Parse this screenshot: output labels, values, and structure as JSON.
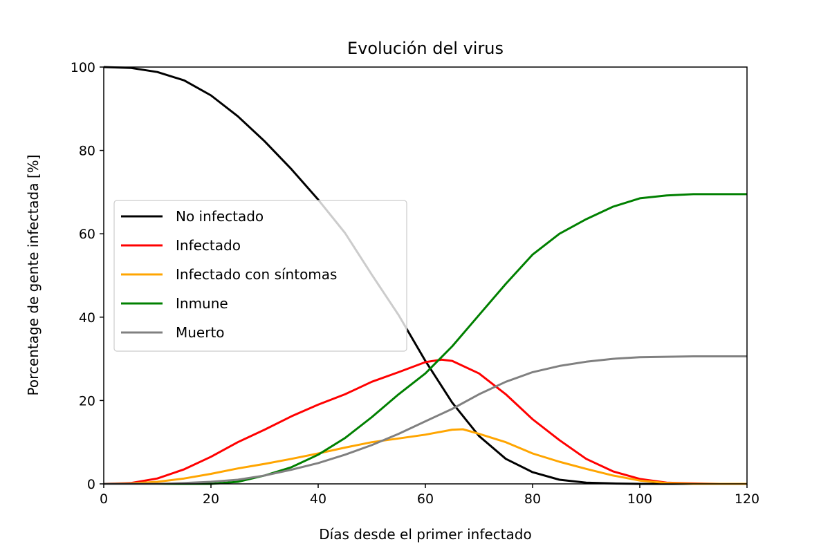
{
  "chart_data": {
    "type": "line",
    "title": "Evolución del virus",
    "xlabel": "Días desde el primer infectado",
    "ylabel": "Porcentage de gente infectada [%]",
    "xlim": [
      0,
      120
    ],
    "ylim": [
      0,
      100
    ],
    "xticks": [
      0,
      20,
      40,
      60,
      80,
      100,
      120
    ],
    "yticks": [
      0,
      20,
      40,
      60,
      80,
      100
    ],
    "grid": false,
    "legend_position": "center-left",
    "series": [
      {
        "name": "No infectado",
        "color": "#000000",
        "points": [
          [
            0,
            100
          ],
          [
            5,
            99.8
          ],
          [
            10,
            98.8
          ],
          [
            15,
            96.8
          ],
          [
            20,
            93.2
          ],
          [
            25,
            88.2
          ],
          [
            30,
            82.2
          ],
          [
            35,
            75.5
          ],
          [
            40,
            68.2
          ],
          [
            45,
            60.2
          ],
          [
            50,
            50.2
          ],
          [
            55,
            40.5
          ],
          [
            60,
            29.5
          ],
          [
            65,
            19.5
          ],
          [
            70,
            11.5
          ],
          [
            75,
            6
          ],
          [
            80,
            2.8
          ],
          [
            85,
            1
          ],
          [
            90,
            0.3
          ],
          [
            95,
            0.1
          ],
          [
            100,
            0
          ],
          [
            105,
            0
          ],
          [
            110,
            0
          ],
          [
            115,
            0
          ],
          [
            120,
            0
          ]
        ]
      },
      {
        "name": "Infectado",
        "color": "#ff0000",
        "points": [
          [
            0,
            0
          ],
          [
            5,
            0.2
          ],
          [
            10,
            1.3
          ],
          [
            15,
            3.5
          ],
          [
            20,
            6.5
          ],
          [
            25,
            10
          ],
          [
            30,
            13
          ],
          [
            35,
            16.2
          ],
          [
            40,
            19
          ],
          [
            45,
            21.5
          ],
          [
            50,
            24.5
          ],
          [
            55,
            26.8
          ],
          [
            60,
            29.2
          ],
          [
            63,
            29.8
          ],
          [
            65,
            29.5
          ],
          [
            70,
            26.5
          ],
          [
            75,
            21.5
          ],
          [
            80,
            15.5
          ],
          [
            85,
            10.5
          ],
          [
            90,
            6
          ],
          [
            95,
            3
          ],
          [
            100,
            1.2
          ],
          [
            105,
            0.3
          ],
          [
            110,
            0.1
          ],
          [
            115,
            0
          ],
          [
            120,
            0
          ]
        ]
      },
      {
        "name": "Infectado con síntomas",
        "color": "#ffa500",
        "points": [
          [
            0,
            0
          ],
          [
            5,
            0.1
          ],
          [
            10,
            0.5
          ],
          [
            15,
            1.3
          ],
          [
            20,
            2.4
          ],
          [
            25,
            3.7
          ],
          [
            30,
            4.8
          ],
          [
            35,
            6
          ],
          [
            40,
            7.3
          ],
          [
            45,
            8.7
          ],
          [
            50,
            10
          ],
          [
            55,
            10.9
          ],
          [
            60,
            11.8
          ],
          [
            65,
            13
          ],
          [
            67,
            13.1
          ],
          [
            70,
            12
          ],
          [
            75,
            10
          ],
          [
            80,
            7.3
          ],
          [
            85,
            5.3
          ],
          [
            90,
            3.6
          ],
          [
            95,
            2
          ],
          [
            100,
            0.8
          ],
          [
            105,
            0.2
          ],
          [
            110,
            0
          ],
          [
            115,
            0
          ],
          [
            120,
            0
          ]
        ]
      },
      {
        "name": "Inmune",
        "color": "#008000",
        "points": [
          [
            0,
            0
          ],
          [
            10,
            0
          ],
          [
            20,
            0
          ],
          [
            25,
            0.5
          ],
          [
            30,
            2
          ],
          [
            35,
            4
          ],
          [
            40,
            7
          ],
          [
            45,
            11
          ],
          [
            50,
            16
          ],
          [
            55,
            21.5
          ],
          [
            60,
            26.5
          ],
          [
            65,
            33
          ],
          [
            70,
            40.5
          ],
          [
            75,
            48
          ],
          [
            80,
            55
          ],
          [
            85,
            60
          ],
          [
            90,
            63.5
          ],
          [
            95,
            66.5
          ],
          [
            100,
            68.5
          ],
          [
            105,
            69.2
          ],
          [
            110,
            69.5
          ],
          [
            115,
            69.5
          ],
          [
            120,
            69.5
          ]
        ]
      },
      {
        "name": "Muerto",
        "color": "#808080",
        "points": [
          [
            0,
            0
          ],
          [
            10,
            0
          ],
          [
            15,
            0.2
          ],
          [
            20,
            0.5
          ],
          [
            25,
            1
          ],
          [
            30,
            2
          ],
          [
            35,
            3.4
          ],
          [
            40,
            5
          ],
          [
            45,
            7
          ],
          [
            50,
            9.3
          ],
          [
            55,
            12
          ],
          [
            60,
            15
          ],
          [
            65,
            18
          ],
          [
            70,
            21.5
          ],
          [
            75,
            24.5
          ],
          [
            80,
            26.8
          ],
          [
            85,
            28.3
          ],
          [
            90,
            29.3
          ],
          [
            95,
            30
          ],
          [
            100,
            30.4
          ],
          [
            105,
            30.5
          ],
          [
            110,
            30.6
          ],
          [
            115,
            30.6
          ],
          [
            120,
            30.6
          ]
        ]
      }
    ]
  }
}
